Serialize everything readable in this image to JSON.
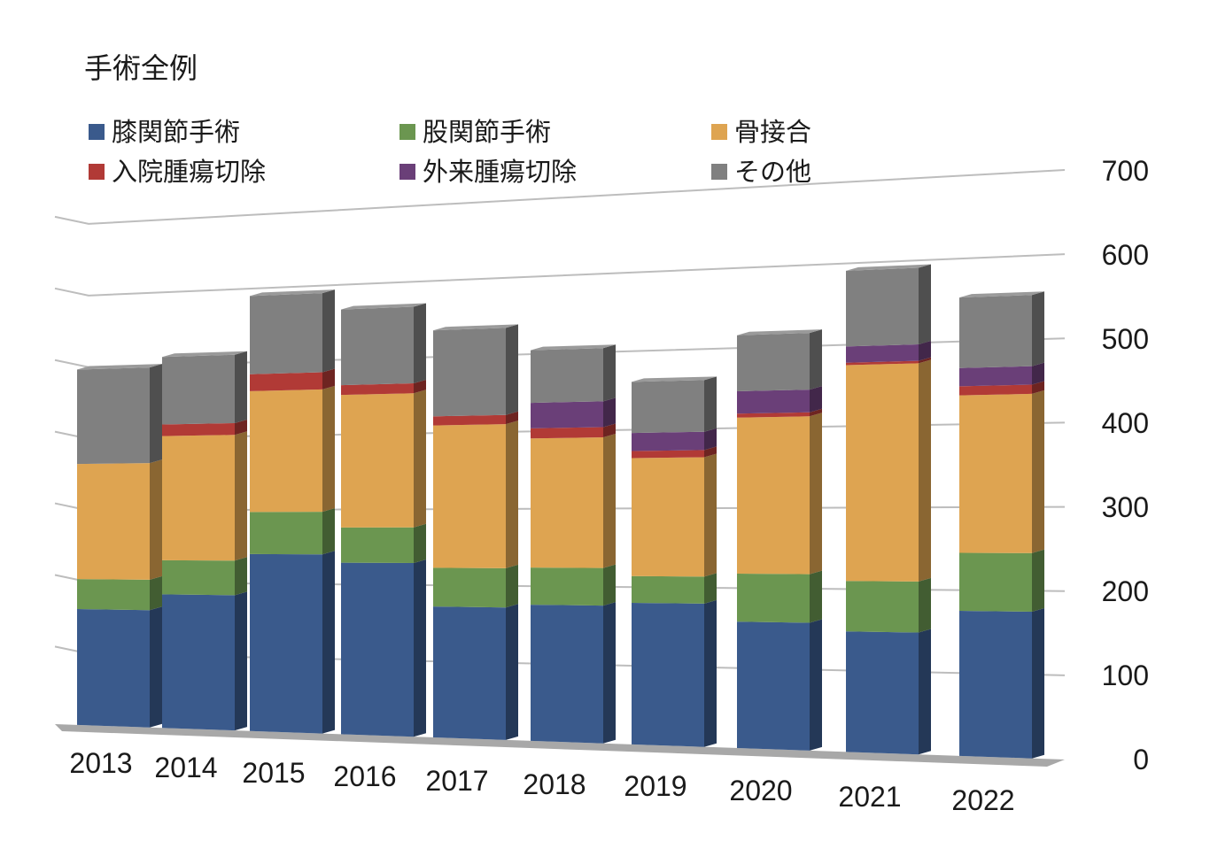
{
  "chart_data": {
    "type": "bar",
    "stacked": true,
    "three_d": true,
    "title": "手術全例",
    "xlabel": "",
    "ylabel": "",
    "categories": [
      "2013",
      "2014",
      "2015",
      "2016",
      "2017",
      "2018",
      "2019",
      "2020",
      "2021",
      "2022"
    ],
    "series": [
      {
        "name": "膝関節手術",
        "color": "#3a5a8c",
        "values": [
          162,
          184,
          240,
          229,
          172,
          176,
          180,
          158,
          148,
          175
        ]
      },
      {
        "name": "股関節手術",
        "color": "#6b9650",
        "values": [
          42,
          47,
          57,
          47,
          51,
          48,
          34,
          60,
          62,
          70
        ]
      },
      {
        "name": "骨接合",
        "color": "#dea451",
        "values": [
          161,
          171,
          164,
          177,
          187,
          167,
          150,
          195,
          265,
          190
        ]
      },
      {
        "name": "入院腫瘍切除",
        "color": "#b13a36",
        "values": [
          0,
          16,
          23,
          13,
          12,
          13,
          9,
          5,
          3,
          11
        ]
      },
      {
        "name": "外来腫瘍切除",
        "color": "#6a3f78",
        "values": [
          0,
          0,
          0,
          0,
          0,
          33,
          23,
          28,
          20,
          22
        ]
      },
      {
        "name": "その他",
        "color": "#808080",
        "values": [
          132,
          93,
          106,
          101,
          113,
          68,
          65,
          70,
          93,
          85
        ]
      }
    ],
    "yticks": [
      "0",
      "100",
      "200",
      "300",
      "400",
      "500",
      "600",
      "700"
    ],
    "ylim": [
      0,
      700
    ],
    "grid": true,
    "legend_position": "top-left"
  }
}
